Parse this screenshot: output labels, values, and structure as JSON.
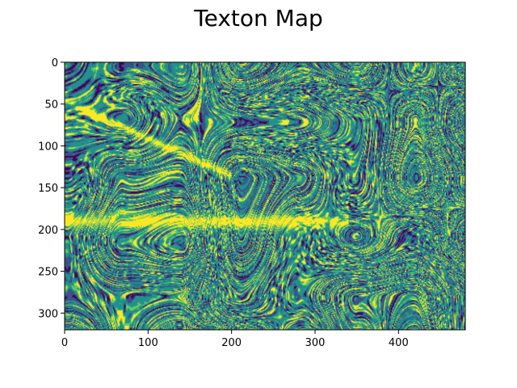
{
  "chart_data": {
    "type": "heatmap",
    "title": "Texton Map",
    "xlabel": "",
    "ylabel": "",
    "image_width": 480,
    "image_height": 320,
    "xlim": [
      0,
      480
    ],
    "ylim": [
      320,
      0
    ],
    "xticks": [
      0,
      100,
      200,
      300,
      400
    ],
    "yticks": [
      0,
      50,
      100,
      150,
      200,
      250,
      300
    ],
    "grid": false,
    "legend": "none",
    "colormap": "viridis",
    "levels": 5,
    "palette": [
      "#440154",
      "#3b528b",
      "#21918c",
      "#5ec962",
      "#fde725"
    ]
  }
}
